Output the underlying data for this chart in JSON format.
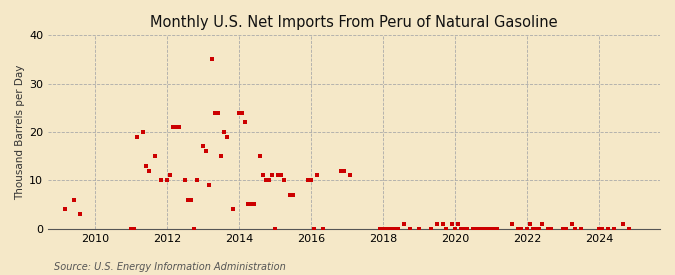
{
  "title": "Monthly U.S. Net Imports From Peru of Natural Gasoline",
  "ylabel": "Thousand Barrels per Day",
  "source": "Source: U.S. Energy Information Administration",
  "background_color": "#f5e8c8",
  "dot_color": "#cc0000",
  "ylim": [
    0,
    40
  ],
  "yticks": [
    0,
    10,
    20,
    30,
    40
  ],
  "xlim_start": 2008.7,
  "xlim_end": 2025.7,
  "xticks": [
    2010,
    2012,
    2014,
    2016,
    2018,
    2020,
    2022,
    2024
  ],
  "data_points": [
    [
      2009.17,
      4
    ],
    [
      2009.42,
      6
    ],
    [
      2009.58,
      3
    ],
    [
      2011.0,
      0
    ],
    [
      2011.08,
      0
    ],
    [
      2011.17,
      19
    ],
    [
      2011.33,
      20
    ],
    [
      2011.42,
      13
    ],
    [
      2011.5,
      12
    ],
    [
      2011.67,
      15
    ],
    [
      2011.83,
      10
    ],
    [
      2012.0,
      10
    ],
    [
      2012.08,
      11
    ],
    [
      2012.17,
      21
    ],
    [
      2012.25,
      21
    ],
    [
      2012.33,
      21
    ],
    [
      2012.5,
      10
    ],
    [
      2012.58,
      6
    ],
    [
      2012.67,
      6
    ],
    [
      2012.75,
      0
    ],
    [
      2012.83,
      10
    ],
    [
      2013.0,
      17
    ],
    [
      2013.08,
      16
    ],
    [
      2013.17,
      9
    ],
    [
      2013.25,
      35
    ],
    [
      2013.33,
      24
    ],
    [
      2013.42,
      24
    ],
    [
      2013.5,
      15
    ],
    [
      2013.58,
      20
    ],
    [
      2013.67,
      19
    ],
    [
      2013.83,
      4
    ],
    [
      2014.0,
      24
    ],
    [
      2014.08,
      24
    ],
    [
      2014.17,
      22
    ],
    [
      2014.25,
      5
    ],
    [
      2014.33,
      5
    ],
    [
      2014.42,
      5
    ],
    [
      2014.58,
      15
    ],
    [
      2014.67,
      11
    ],
    [
      2014.75,
      10
    ],
    [
      2014.83,
      10
    ],
    [
      2014.92,
      11
    ],
    [
      2015.0,
      0
    ],
    [
      2015.08,
      11
    ],
    [
      2015.17,
      11
    ],
    [
      2015.25,
      10
    ],
    [
      2015.42,
      7
    ],
    [
      2015.5,
      7
    ],
    [
      2015.92,
      10
    ],
    [
      2016.0,
      10
    ],
    [
      2016.08,
      0
    ],
    [
      2016.17,
      11
    ],
    [
      2016.33,
      0
    ],
    [
      2016.83,
      12
    ],
    [
      2016.92,
      12
    ],
    [
      2017.08,
      11
    ],
    [
      2017.92,
      0
    ],
    [
      2018.0,
      0
    ],
    [
      2018.08,
      0
    ],
    [
      2018.17,
      0
    ],
    [
      2018.25,
      0
    ],
    [
      2018.33,
      0
    ],
    [
      2018.42,
      0
    ],
    [
      2018.58,
      1
    ],
    [
      2018.75,
      0
    ],
    [
      2019.0,
      0
    ],
    [
      2019.33,
      0
    ],
    [
      2019.5,
      1
    ],
    [
      2019.67,
      1
    ],
    [
      2019.75,
      0
    ],
    [
      2019.92,
      1
    ],
    [
      2020.0,
      0
    ],
    [
      2020.08,
      1
    ],
    [
      2020.17,
      0
    ],
    [
      2020.25,
      0
    ],
    [
      2020.33,
      0
    ],
    [
      2020.5,
      0
    ],
    [
      2020.58,
      0
    ],
    [
      2020.67,
      0
    ],
    [
      2020.75,
      0
    ],
    [
      2020.83,
      0
    ],
    [
      2020.92,
      0
    ],
    [
      2021.0,
      0
    ],
    [
      2021.08,
      0
    ],
    [
      2021.17,
      0
    ],
    [
      2021.58,
      1
    ],
    [
      2021.75,
      0
    ],
    [
      2021.83,
      0
    ],
    [
      2022.0,
      0
    ],
    [
      2022.08,
      1
    ],
    [
      2022.17,
      0
    ],
    [
      2022.25,
      0
    ],
    [
      2022.33,
      0
    ],
    [
      2022.42,
      1
    ],
    [
      2022.58,
      0
    ],
    [
      2022.67,
      0
    ],
    [
      2023.0,
      0
    ],
    [
      2023.08,
      0
    ],
    [
      2023.25,
      1
    ],
    [
      2023.33,
      0
    ],
    [
      2023.5,
      0
    ],
    [
      2024.0,
      0
    ],
    [
      2024.08,
      0
    ],
    [
      2024.25,
      0
    ],
    [
      2024.42,
      0
    ],
    [
      2024.67,
      1
    ],
    [
      2024.83,
      0
    ]
  ]
}
